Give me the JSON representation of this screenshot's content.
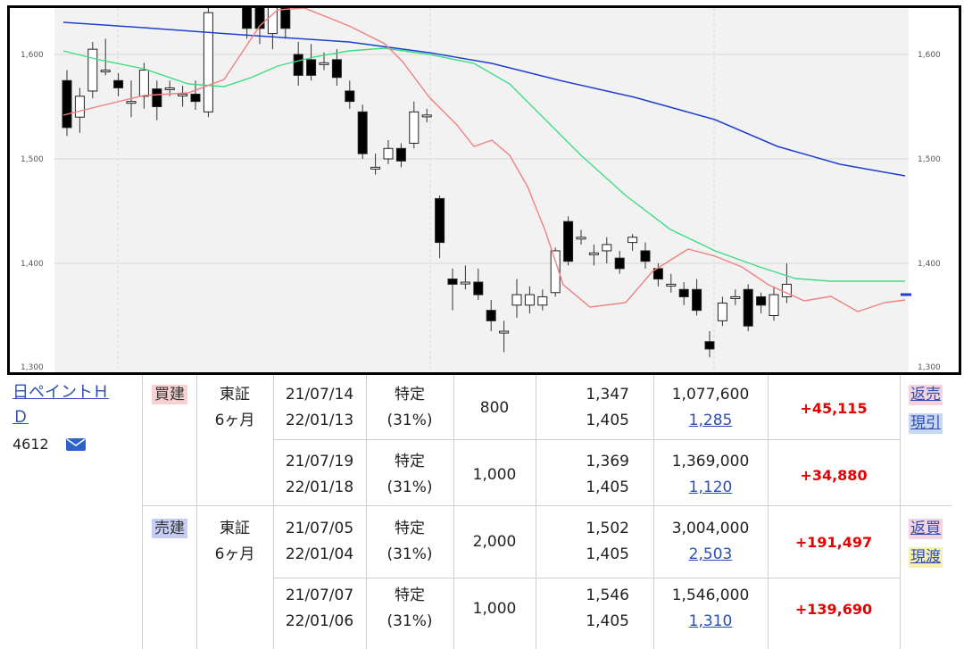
{
  "chart": {
    "y_ticks_left": [
      "1,600",
      "1,500",
      "1,400",
      "1,300"
    ],
    "y_ticks_right": [
      "1,600",
      "1,500",
      "1,400",
      "1,300"
    ],
    "colors": {
      "ma_short": "#f08080",
      "ma_mid": "#3ddc84",
      "ma_long": "#1f3fd1",
      "candle_up": "#ffffff",
      "candle_down": "#000000",
      "grid": "#d8d8d8",
      "background": "#f2f2f2"
    }
  },
  "stock": {
    "name": "日ペイントＨＤ",
    "code": "4612",
    "mail_icon": "mail-icon"
  },
  "groups": [
    {
      "side_label": "買建",
      "market": "東証",
      "term": "6ヶ月",
      "actions": [
        "返売",
        "現引"
      ],
      "rows": [
        {
          "date_open": "21/07/14",
          "date_due": "22/01/13",
          "account": "特定",
          "tax": "(31%)",
          "quantity": "800",
          "price_open": "1,347",
          "price_now": "1,405",
          "amount": "1,077,600",
          "cost": "1,285",
          "profit": "+45,115"
        },
        {
          "date_open": "21/07/19",
          "date_due": "22/01/18",
          "account": "特定",
          "tax": "(31%)",
          "quantity": "1,000",
          "price_open": "1,369",
          "price_now": "1,405",
          "amount": "1,369,000",
          "cost": "1,120",
          "profit": "+34,880"
        }
      ]
    },
    {
      "side_label": "売建",
      "market": "東証",
      "term": "6ヶ月",
      "actions": [
        "返買",
        "現渡"
      ],
      "rows": [
        {
          "date_open": "21/07/05",
          "date_due": "22/01/04",
          "account": "特定",
          "tax": "(31%)",
          "quantity": "2,000",
          "price_open": "1,502",
          "price_now": "1,405",
          "amount": "3,004,000",
          "cost": "2,503",
          "profit": "+191,497"
        },
        {
          "date_open": "21/07/07",
          "date_due": "22/01/06",
          "account": "特定",
          "tax": "(31%)",
          "quantity": "1,000",
          "price_open": "1,546",
          "price_now": "1,405",
          "amount": "1,546,000",
          "cost": "1,310",
          "profit": "+139,690"
        }
      ]
    }
  ]
}
